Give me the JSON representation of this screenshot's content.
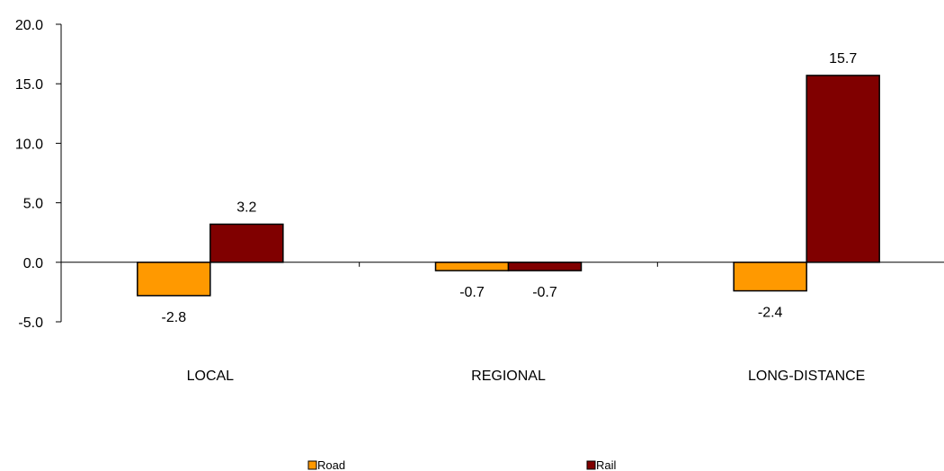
{
  "chart_data": {
    "type": "bar",
    "categories": [
      "LOCAL",
      "REGIONAL",
      "LONG-DISTANCE"
    ],
    "series": [
      {
        "name": "Road",
        "values": [
          -2.8,
          -0.7,
          -2.4
        ],
        "color": "#FF9900"
      },
      {
        "name": "Rail",
        "values": [
          3.2,
          -0.7,
          15.7
        ],
        "color": "#800000"
      }
    ],
    "ylim": [
      -5.0,
      20.0
    ],
    "yticks": [
      "20.0",
      "15.0",
      "10.0",
      "5.0",
      "0.0",
      "-5.0"
    ],
    "data_labels": [
      [
        "-2.8",
        "-0.7",
        "-2.4"
      ],
      [
        "3.2",
        "-0.7",
        "15.7"
      ]
    ],
    "grid": false,
    "legend_position": "bottom"
  }
}
